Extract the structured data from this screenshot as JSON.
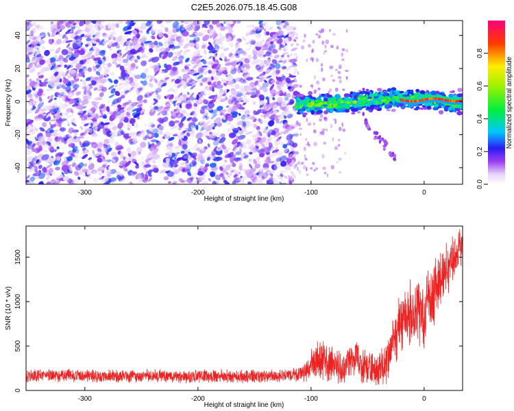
{
  "figure": {
    "title": "C2E5.2026.075.18.45.G08"
  },
  "chart_data": [
    {
      "type": "heatmap",
      "title": "C2E5.2026.075.18.45.G08",
      "xlabel": "Height of straight line (km)",
      "ylabel": "Frequency (Hz)",
      "xlim": [
        -352,
        34
      ],
      "ylim": [
        -50,
        49
      ],
      "xticks": [
        -300,
        -200,
        -100,
        0
      ],
      "yticks": [
        -40,
        -20,
        0,
        20,
        40
      ],
      "colorbar": {
        "label": "Normalized spectral amplitude",
        "range": [
          0.0,
          1.0
        ],
        "ticks": [
          0.0,
          0.2,
          0.4,
          0.6,
          0.8
        ]
      },
      "regions": [
        {
          "name": "noise",
          "x_range": [
            -352,
            -113
          ],
          "freq_range": [
            -50,
            49
          ],
          "amplitude": 0.15
        },
        {
          "name": "signal-band",
          "x_range": [
            -113,
            34
          ],
          "freq_center": 0,
          "freq_halfwidth": 5,
          "amplitude": 0.45
        },
        {
          "name": "strong-tone",
          "x_range": [
            -20,
            34
          ],
          "freq_center": 1,
          "amplitude": 0.9
        }
      ]
    },
    {
      "type": "line",
      "xlabel": "Height of straight line (km)",
      "ylabel": "SNR (10 * v/v)",
      "xlim": [
        -352,
        34
      ],
      "ylim": [
        0,
        1850
      ],
      "xticks": [
        -300,
        -200,
        -100,
        0
      ],
      "yticks": [
        0,
        500,
        1000,
        1500
      ],
      "color": "#ee2222",
      "series": [
        {
          "name": "SNR",
          "x": [
            -352,
            -340,
            -320,
            -300,
            -280,
            -260,
            -240,
            -220,
            -200,
            -180,
            -160,
            -140,
            -120,
            -110,
            -105,
            -100,
            -95,
            -90,
            -85,
            -80,
            -75,
            -70,
            -65,
            -60,
            -55,
            -50,
            -45,
            -40,
            -35,
            -30,
            -25,
            -20,
            -15,
            -10,
            -5,
            0,
            5,
            10,
            15,
            20,
            25,
            30,
            34
          ],
          "mean": [
            160,
            170,
            170,
            165,
            160,
            165,
            160,
            160,
            155,
            160,
            160,
            160,
            170,
            180,
            220,
            280,
            330,
            350,
            300,
            320,
            260,
            240,
            330,
            380,
            310,
            250,
            230,
            240,
            300,
            450,
            650,
            800,
            860,
            850,
            880,
            900,
            1050,
            1100,
            1250,
            1350,
            1450,
            1550,
            1650
          ],
          "spread": [
            70,
            70,
            70,
            70,
            70,
            70,
            70,
            70,
            70,
            70,
            70,
            70,
            70,
            80,
            110,
            160,
            200,
            220,
            200,
            200,
            180,
            170,
            200,
            230,
            200,
            180,
            170,
            180,
            220,
            280,
            320,
            340,
            360,
            360,
            360,
            380,
            360,
            340,
            320,
            300,
            280,
            240,
            200
          ]
        }
      ]
    }
  ]
}
